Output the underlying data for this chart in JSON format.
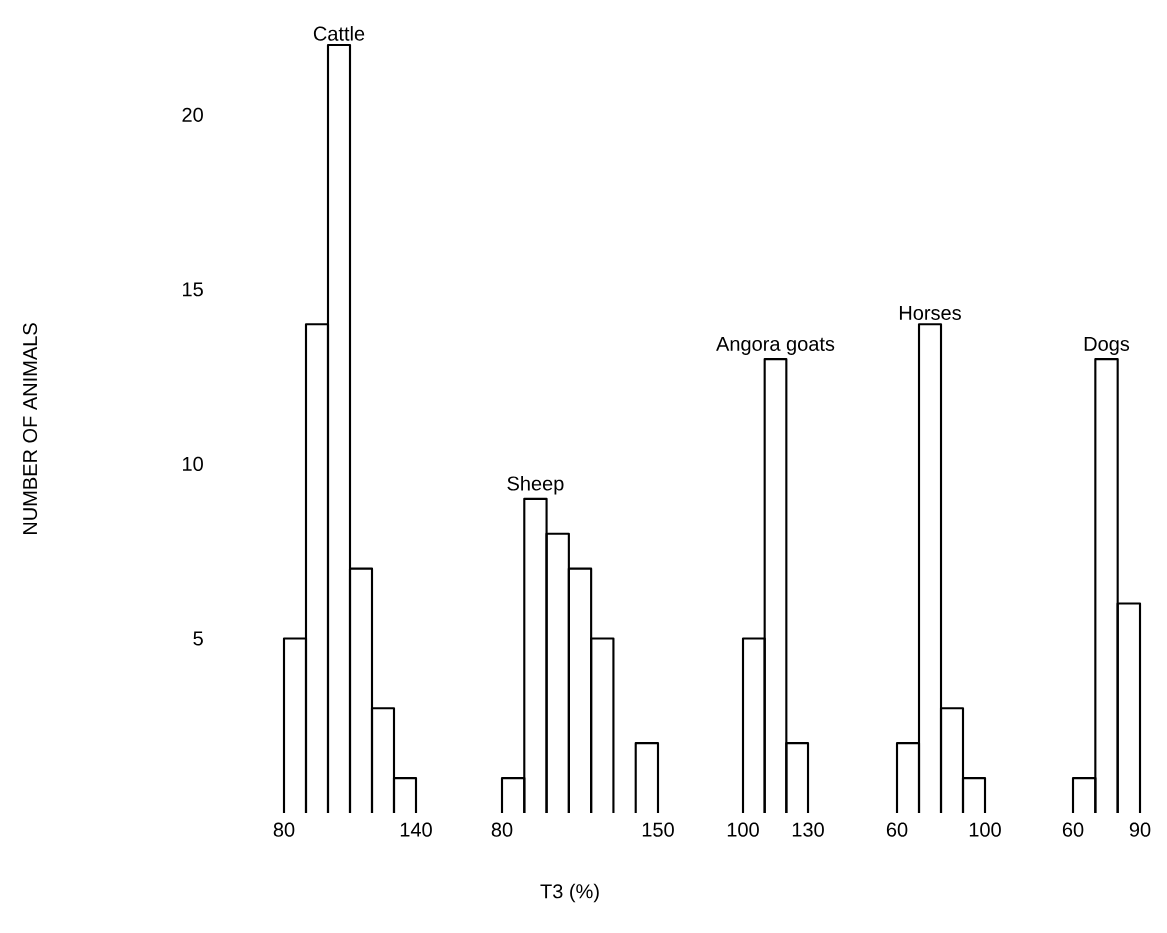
{
  "chart_data": [
    {
      "type": "histogram",
      "title": "Cattle",
      "ylabel": "NUMBER OF ANIMALS",
      "bins": [
        80,
        90,
        100,
        110,
        120,
        130,
        140
      ],
      "values": [
        5,
        14,
        22,
        7,
        3,
        1
      ],
      "color": "#000000",
      "xlim": [
        80,
        140
      ],
      "xticks": [
        80,
        140
      ],
      "ylim": [
        0,
        22
      ],
      "yticks": [
        5,
        10,
        15,
        20
      ],
      "grid": false
    },
    {
      "type": "histogram",
      "title": "Sheep",
      "xlabel": "T3 (%)",
      "bins": [
        80,
        90,
        100,
        110,
        120,
        130,
        140,
        150
      ],
      "values": [
        1,
        9,
        8,
        7,
        5,
        0,
        2
      ],
      "color": "#000000",
      "xlim": [
        80,
        150
      ],
      "xticks": [
        80,
        150
      ],
      "ylim": [
        0,
        20
      ],
      "yticks": [
        5,
        10,
        15,
        20
      ],
      "tick_labels": "x",
      "grid": false
    },
    {
      "type": "histogram",
      "title": "Angora goats",
      "bins": [
        100,
        110,
        120,
        130
      ],
      "values": [
        5,
        13,
        2
      ],
      "color": "#000000",
      "xlim": [
        100,
        130
      ],
      "xticks": [
        100,
        130
      ],
      "ylim": [
        0,
        20
      ],
      "yticks": [
        5,
        10,
        15,
        20
      ],
      "tick_labels": "x",
      "grid": false
    },
    {
      "type": "histogram",
      "title": "Horses",
      "bins": [
        60,
        70,
        80,
        90,
        100
      ],
      "values": [
        2,
        14,
        3,
        1
      ],
      "color": "#000000",
      "xlim": [
        60,
        100
      ],
      "xticks": [
        60,
        100
      ],
      "ylim": [
        0,
        20
      ],
      "yticks": [
        5,
        10,
        15,
        20
      ],
      "tick_labels": "x",
      "grid": false
    },
    {
      "type": "histogram",
      "title": "Dogs",
      "bins": [
        60,
        70,
        80,
        90
      ],
      "values": [
        1,
        13,
        6
      ],
      "color": "#000000",
      "xlim": [
        60,
        90
      ],
      "xticks": [
        60,
        90
      ],
      "ylim": [
        0,
        20
      ],
      "yticks": [
        5,
        10,
        15,
        20
      ],
      "tick_labels": "x",
      "grid": false
    }
  ]
}
